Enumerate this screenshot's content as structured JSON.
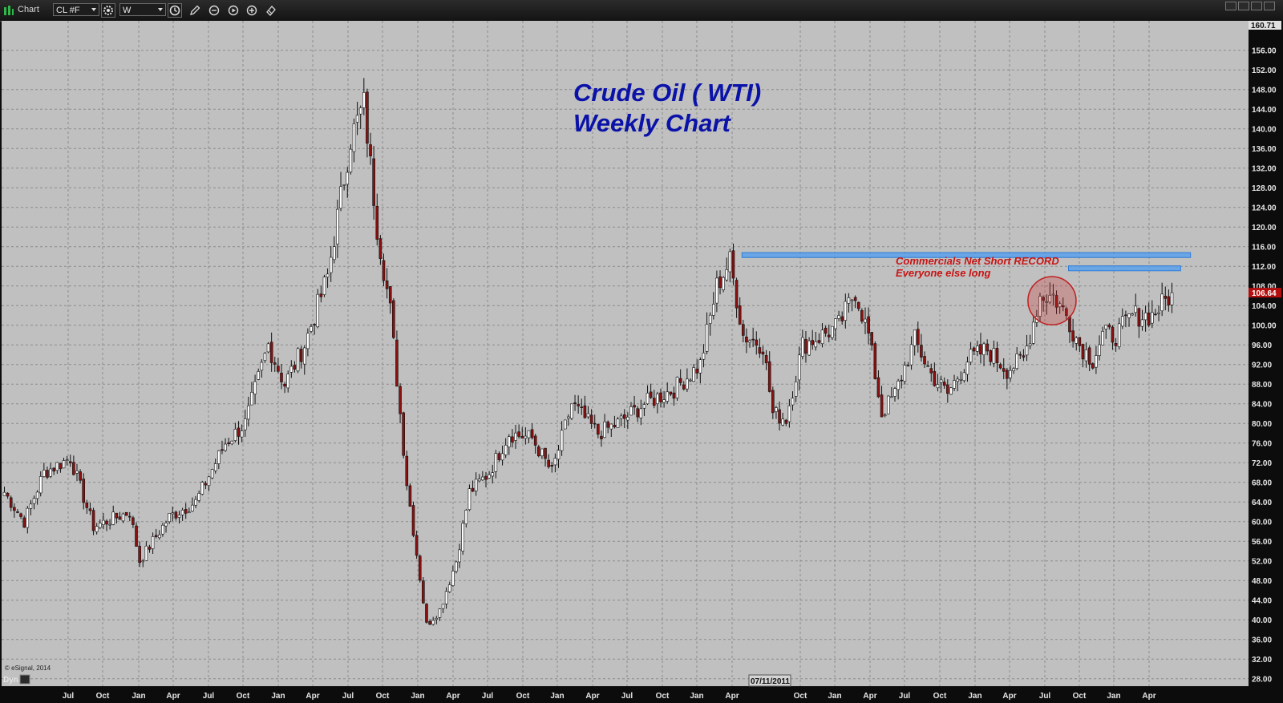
{
  "window": {
    "title": "Chart",
    "symbol": "CL #F",
    "interval": "W",
    "bottom_label": "Dyn"
  },
  "icons": [
    "chart-bars-icon",
    "settings-gear-icon",
    "clock-icon",
    "pencil-icon",
    "zoom-out-icon",
    "play-icon",
    "zoom-in-icon",
    "eraser-icon",
    "window-restore-icon",
    "window-minimize-icon",
    "window-maximize-icon",
    "window-close-icon"
  ],
  "colors": {
    "plot_bg": "#c0c0c0",
    "up_candle": "#ffffff",
    "down_candle": "#8b1010",
    "title_blue": "#0a12a8",
    "annotation_red": "#c81414",
    "resistance_blue": "#5aa0ec",
    "last_price_badge": "#b30e0e"
  },
  "chart_data": {
    "type": "candlestick",
    "title_line1": "Crude Oil ( WTI)",
    "title_line2": "Weekly Chart",
    "copyright": "© eSignal, 2014",
    "annotation_line1": "Commercials Net Short RECORD",
    "annotation_line2": "Everyone else long",
    "cursor_date": "07/11/2011",
    "last_price": "106.64",
    "top_price": "160.71",
    "ylim": [
      26.5,
      162
    ],
    "y_ticks": [
      "156.00",
      "152.00",
      "148.00",
      "144.00",
      "140.00",
      "136.00",
      "132.00",
      "128.00",
      "124.00",
      "120.00",
      "116.00",
      "112.00",
      "108.00",
      "104.00",
      "100.00",
      "96.00",
      "92.00",
      "88.00",
      "84.00",
      "80.00",
      "76.00",
      "72.00",
      "68.00",
      "64.00",
      "60.00",
      "56.00",
      "52.00",
      "48.00",
      "44.00",
      "40.00",
      "36.00",
      "32.00",
      "28.00"
    ],
    "x_ticks": [
      "Jul",
      "Oct",
      "Jan",
      "Apr",
      "Jul",
      "Oct",
      "Jan",
      "Apr",
      "Jul",
      "Oct",
      "Jan",
      "Apr",
      "Jul",
      "Oct",
      "Jan",
      "Apr",
      "Jul",
      "Oct",
      "Jan",
      "Apr",
      "Oct",
      "Jan",
      "Apr",
      "Jul",
      "Oct",
      "Jan",
      "Apr",
      "Jul",
      "Oct",
      "Jan",
      "Apr"
    ],
    "price_path": [
      {
        "week": 0,
        "price": 66
      },
      {
        "week": 6,
        "price": 60
      },
      {
        "week": 12,
        "price": 70
      },
      {
        "week": 20,
        "price": 73
      },
      {
        "week": 27,
        "price": 59
      },
      {
        "week": 38,
        "price": 62
      },
      {
        "week": 41,
        "price": 52
      },
      {
        "week": 50,
        "price": 61
      },
      {
        "week": 58,
        "price": 64
      },
      {
        "week": 67,
        "price": 76
      },
      {
        "week": 73,
        "price": 80
      },
      {
        "week": 80,
        "price": 96
      },
      {
        "week": 85,
        "price": 88
      },
      {
        "week": 91,
        "price": 96
      },
      {
        "week": 98,
        "price": 110
      },
      {
        "week": 105,
        "price": 138
      },
      {
        "week": 109,
        "price": 145
      },
      {
        "week": 113,
        "price": 120
      },
      {
        "week": 117,
        "price": 103
      },
      {
        "week": 122,
        "price": 68
      },
      {
        "week": 128,
        "price": 39
      },
      {
        "week": 132,
        "price": 42
      },
      {
        "week": 137,
        "price": 52
      },
      {
        "week": 141,
        "price": 66
      },
      {
        "week": 147,
        "price": 70
      },
      {
        "week": 153,
        "price": 78
      },
      {
        "week": 160,
        "price": 77
      },
      {
        "week": 166,
        "price": 70
      },
      {
        "week": 172,
        "price": 84
      },
      {
        "week": 180,
        "price": 78
      },
      {
        "week": 186,
        "price": 80
      },
      {
        "week": 194,
        "price": 84
      },
      {
        "week": 203,
        "price": 87
      },
      {
        "week": 211,
        "price": 92
      },
      {
        "week": 216,
        "price": 108
      },
      {
        "week": 220,
        "price": 113
      },
      {
        "week": 224,
        "price": 98
      },
      {
        "week": 230,
        "price": 96
      },
      {
        "week": 233,
        "price": 82
      },
      {
        "week": 237,
        "price": 81
      },
      {
        "week": 242,
        "price": 96
      },
      {
        "week": 248,
        "price": 98
      },
      {
        "week": 253,
        "price": 100
      },
      {
        "week": 258,
        "price": 107
      },
      {
        "week": 262,
        "price": 98
      },
      {
        "week": 266,
        "price": 82
      },
      {
        "week": 270,
        "price": 86
      },
      {
        "week": 276,
        "price": 97
      },
      {
        "week": 281,
        "price": 90
      },
      {
        "week": 286,
        "price": 86
      },
      {
        "week": 292,
        "price": 93
      },
      {
        "week": 298,
        "price": 95
      },
      {
        "week": 304,
        "price": 91
      },
      {
        "week": 309,
        "price": 93
      },
      {
        "week": 314,
        "price": 106
      },
      {
        "week": 318,
        "price": 106
      },
      {
        "week": 322,
        "price": 102
      },
      {
        "week": 326,
        "price": 96
      },
      {
        "week": 330,
        "price": 93
      },
      {
        "week": 333,
        "price": 98
      },
      {
        "week": 337,
        "price": 98
      },
      {
        "week": 342,
        "price": 102
      },
      {
        "week": 348,
        "price": 102
      },
      {
        "week": 352,
        "price": 105
      },
      {
        "week": 354,
        "price": 106.64
      }
    ],
    "resistance_zones": [
      {
        "x_from_week": 224,
        "x_to_week": 360,
        "y_low": 113.8,
        "y_high": 114.8
      },
      {
        "x_from_week": 323,
        "x_to_week": 357,
        "y_low": 111.1,
        "y_high": 112.1
      }
    ],
    "highlight_circle": {
      "center_week": 318,
      "center_price": 105
    }
  }
}
